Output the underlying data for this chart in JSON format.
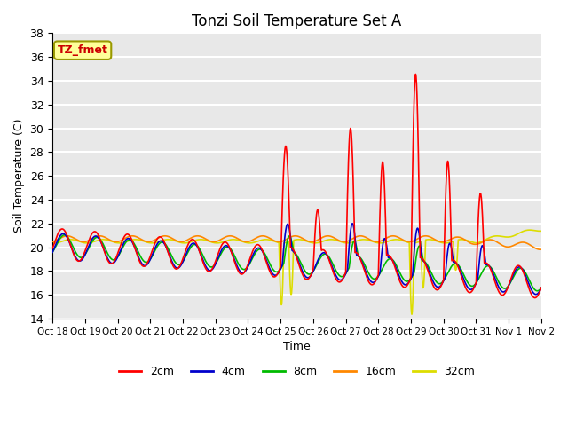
{
  "title": "Tonzi Soil Temperature Set A",
  "xlabel": "Time",
  "ylabel": "Soil Temperature (C)",
  "xlim": [
    0,
    15
  ],
  "ylim": [
    14,
    38
  ],
  "yticks": [
    14,
    16,
    18,
    20,
    22,
    24,
    26,
    28,
    30,
    32,
    34,
    36,
    38
  ],
  "xtick_labels": [
    "Oct 18",
    "Oct 19",
    "Oct 20",
    "Oct 21",
    "Oct 22",
    "Oct 23",
    "Oct 24",
    "Oct 25",
    "Oct 26",
    "Oct 27",
    "Oct 28",
    "Oct 29",
    "Oct 30",
    "Oct 31",
    "Nov 1",
    "Nov 2"
  ],
  "background_color": "#e8e8e8",
  "grid_color": "#ffffff",
  "annotation_text": "TZ_fmet",
  "annotation_bg": "#ffff99",
  "annotation_border": "#999900",
  "colors": {
    "2cm": "#ff0000",
    "4cm": "#0000cc",
    "8cm": "#00bb00",
    "16cm": "#ff8800",
    "32cm": "#dddd00"
  },
  "line_width": 1.2
}
